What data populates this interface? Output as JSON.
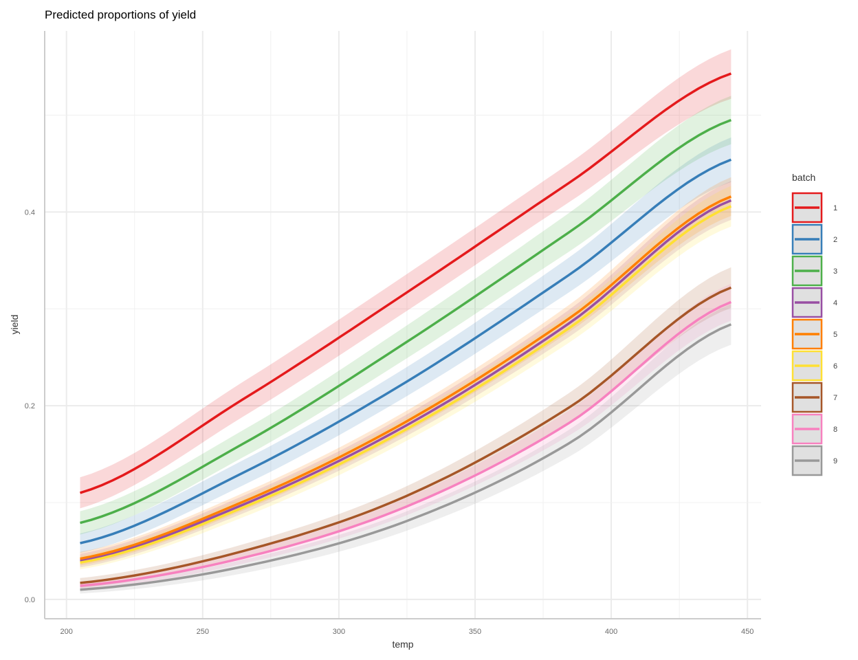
{
  "chart_data": {
    "type": "line",
    "title": "Predicted proportions of yield",
    "xlabel": "temp",
    "ylabel": "yield",
    "xlim": [
      192,
      455
    ],
    "ylim": [
      -0.02,
      0.587
    ],
    "x_ticks": [
      200,
      250,
      300,
      350,
      400,
      450
    ],
    "y_ticks": [
      0.0,
      0.2,
      0.4
    ],
    "y_tick_labels": [
      "0.0",
      "0.2",
      "0.4"
    ],
    "grid": true,
    "legend": {
      "title": "batch",
      "position": "right"
    },
    "x": [
      205,
      265,
      325,
      385,
      444
    ],
    "series": [
      {
        "name": "1",
        "color": "#e41a1c",
        "values": [
          0.11,
          0.207,
          0.317,
          0.431,
          0.543
        ],
        "lower": [
          0.094,
          0.189,
          0.298,
          0.411,
          0.517
        ],
        "upper": [
          0.126,
          0.225,
          0.336,
          0.451,
          0.568
        ]
      },
      {
        "name": "2",
        "color": "#377eb8",
        "values": [
          0.058,
          0.131,
          0.225,
          0.336,
          0.454
        ],
        "lower": [
          0.048,
          0.118,
          0.21,
          0.318,
          0.431
        ],
        "upper": [
          0.068,
          0.144,
          0.24,
          0.354,
          0.477
        ]
      },
      {
        "name": "3",
        "color": "#4daf4a",
        "values": [
          0.079,
          0.161,
          0.266,
          0.38,
          0.495
        ],
        "lower": [
          0.067,
          0.147,
          0.249,
          0.36,
          0.47
        ],
        "upper": [
          0.091,
          0.175,
          0.283,
          0.4,
          0.52
        ]
      },
      {
        "name": "4",
        "color": "#984ea3",
        "values": [
          0.04,
          0.098,
          0.18,
          0.286,
          0.412
        ],
        "lower": [
          0.033,
          0.089,
          0.169,
          0.272,
          0.392
        ],
        "upper": [
          0.047,
          0.107,
          0.191,
          0.3,
          0.432
        ]
      },
      {
        "name": "5",
        "color": "#ff7f00",
        "values": [
          0.042,
          0.101,
          0.184,
          0.291,
          0.416
        ],
        "lower": [
          0.035,
          0.092,
          0.173,
          0.277,
          0.396
        ],
        "upper": [
          0.049,
          0.11,
          0.195,
          0.305,
          0.436
        ]
      },
      {
        "name": "6",
        "color": "#ffe033",
        "values": [
          0.038,
          0.095,
          0.176,
          0.281,
          0.406
        ],
        "lower": [
          0.031,
          0.085,
          0.164,
          0.266,
          0.385
        ],
        "upper": [
          0.045,
          0.105,
          0.188,
          0.296,
          0.427
        ]
      },
      {
        "name": "7",
        "color": "#a65628",
        "values": [
          0.017,
          0.05,
          0.107,
          0.199,
          0.322
        ],
        "lower": [
          0.012,
          0.043,
          0.097,
          0.184,
          0.301
        ],
        "upper": [
          0.022,
          0.057,
          0.117,
          0.214,
          0.343
        ]
      },
      {
        "name": "8",
        "color": "#f781bf",
        "values": [
          0.014,
          0.043,
          0.096,
          0.183,
          0.307
        ],
        "lower": [
          0.01,
          0.037,
          0.087,
          0.17,
          0.288
        ],
        "upper": [
          0.018,
          0.049,
          0.105,
          0.196,
          0.326
        ]
      },
      {
        "name": "9",
        "color": "#999999",
        "values": [
          0.01,
          0.034,
          0.081,
          0.162,
          0.284
        ],
        "lower": [
          0.006,
          0.027,
          0.071,
          0.148,
          0.263
        ],
        "upper": [
          0.014,
          0.041,
          0.091,
          0.176,
          0.305
        ]
      }
    ]
  }
}
